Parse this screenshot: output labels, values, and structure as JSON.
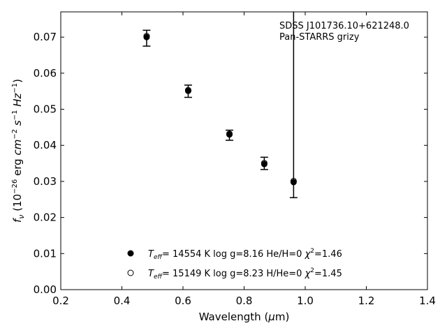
{
  "chart_data": {
    "type": "scatter",
    "xlabel": "Wavelength (μm)",
    "ylabel": "f_ν (10⁻²⁶ erg cm⁻² s⁻¹ Hz⁻¹)",
    "xlim": [
      0.2,
      1.4
    ],
    "ylim": [
      0.0,
      0.077
    ],
    "x_ticks": [
      "0.2",
      "0.4",
      "0.6",
      "0.8",
      "1.0",
      "1.2",
      "1.4"
    ],
    "y_ticks": [
      "0.00",
      "0.01",
      "0.02",
      "0.03",
      "0.04",
      "0.05",
      "0.06",
      "0.07"
    ],
    "annotation": [
      "SDSS J101736.10+621248.0",
      "Pan-STARRS grizy"
    ],
    "observed": [
      {
        "x": 0.481,
        "y": 0.0697,
        "err": 0.0022
      },
      {
        "x": 0.617,
        "y": 0.055,
        "err": 0.0017
      },
      {
        "x": 0.752,
        "y": 0.0428,
        "err": 0.0014
      },
      {
        "x": 0.866,
        "y": 0.035,
        "err": 0.0017
      },
      {
        "x": 0.962,
        "y": 0.03,
        "err": 0.0045,
        "err_up_to": 0.077
      }
    ],
    "series": [
      {
        "name": "He/H=0",
        "marker": "filled-circle",
        "legend": {
          "prefix": "T",
          "sub": "eff",
          "text": "= 14554 K  log g=8.16  He/H=0  ",
          "chi": "χ",
          "chi_exp": "2",
          "chi_val": "=1.46"
        },
        "points": [
          {
            "x": 0.481,
            "y": 0.07
          },
          {
            "x": 0.617,
            "y": 0.0551
          },
          {
            "x": 0.752,
            "y": 0.043
          },
          {
            "x": 0.866,
            "y": 0.0348
          },
          {
            "x": 0.962,
            "y": 0.0298
          }
        ]
      },
      {
        "name": "H/He=0",
        "marker": "open-circle",
        "legend": {
          "prefix": "T",
          "sub": "eff",
          "text": "= 15149 K  log g=8.23  H/He=0  ",
          "chi": "χ",
          "chi_exp": "2",
          "chi_val": "=1.45"
        },
        "points": [
          {
            "x": 0.481,
            "y": 0.0703
          },
          {
            "x": 0.617,
            "y": 0.0553
          },
          {
            "x": 0.752,
            "y": 0.0432
          },
          {
            "x": 0.866,
            "y": 0.0351
          },
          {
            "x": 0.962,
            "y": 0.0301
          }
        ]
      }
    ],
    "grid": false
  }
}
